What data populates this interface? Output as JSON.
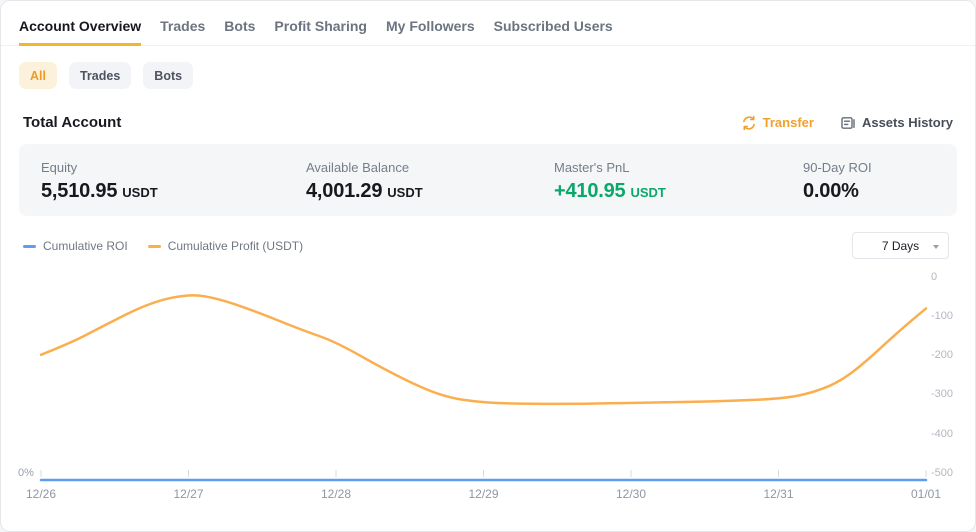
{
  "tabs": {
    "items": [
      {
        "label": "Account Overview",
        "active": true
      },
      {
        "label": "Trades",
        "active": false
      },
      {
        "label": "Bots",
        "active": false
      },
      {
        "label": "Profit Sharing",
        "active": false
      },
      {
        "label": "My Followers",
        "active": false
      },
      {
        "label": "Subscribed Users",
        "active": false
      }
    ]
  },
  "filters": {
    "items": [
      {
        "label": "All",
        "active": true
      },
      {
        "label": "Trades",
        "active": false
      },
      {
        "label": "Bots",
        "active": false
      }
    ]
  },
  "account_section": {
    "title": "Total Account",
    "transfer_label": "Transfer",
    "assets_history_label": "Assets History"
  },
  "stats": {
    "items": [
      {
        "label": "Equity",
        "value": "5,510.95",
        "unit": "USDT",
        "emphasis": "default"
      },
      {
        "label": "Available Balance",
        "value": "4,001.29",
        "unit": "USDT",
        "emphasis": "default"
      },
      {
        "label": "Master's PnL",
        "value": "+410.95",
        "unit": "USDT",
        "emphasis": "positive"
      },
      {
        "label": "90-Day ROI",
        "value": "0.00%",
        "unit": "",
        "emphasis": "default"
      }
    ]
  },
  "chart_header": {
    "legend": [
      {
        "label": "Cumulative ROI",
        "color": "#5f9df2"
      },
      {
        "label": "Cumulative Profit (USDT)",
        "color": "#fbae4e"
      }
    ],
    "range_selector": {
      "value": "7 Days"
    }
  },
  "colors": {
    "accent_orange": "#f0a12c",
    "tab_underline": "#f5b52b",
    "positive_green": "#0aa869",
    "roi_line": "#5f9df2",
    "profit_line": "#fbae4e",
    "axis_tick": "#d7dbe0"
  },
  "chart_data": {
    "type": "line",
    "x_labels": [
      "12/26",
      "12/27",
      "12/28",
      "12/29",
      "12/30",
      "12/31",
      "01/01"
    ],
    "left_axis": {
      "unit": "%",
      "visible_tick": "0%"
    },
    "right_axis": {
      "ticks": [
        0,
        -100,
        -200,
        -300,
        -400,
        -500
      ],
      "range": [
        0,
        -500
      ]
    },
    "grid": false,
    "legend_position": "top-left",
    "series": [
      {
        "name": "Cumulative ROI",
        "axis": "left",
        "unit": "%",
        "color": "#5f9df2",
        "values": [
          0,
          0,
          0,
          0,
          0,
          0,
          0
        ]
      },
      {
        "name": "Cumulative Profit (USDT)",
        "axis": "right",
        "unit": "USDT",
        "color": "#fbae4e",
        "values": [
          -198,
          -45,
          -165,
          -322,
          -320,
          -310,
          -80
        ],
        "curve_samples": [
          [
            0,
            -198
          ],
          [
            0.2,
            -168
          ],
          [
            0.41,
            -127
          ],
          [
            0.75,
            -63
          ],
          [
            1.02,
            -43
          ],
          [
            1.2,
            -55
          ],
          [
            1.43,
            -84
          ],
          [
            1.77,
            -135
          ],
          [
            2.0,
            -165
          ],
          [
            2.38,
            -246
          ],
          [
            2.72,
            -305
          ],
          [
            3.0,
            -320
          ],
          [
            3.3,
            -323
          ],
          [
            3.7,
            -323
          ],
          [
            4.0,
            -320
          ],
          [
            4.4,
            -318
          ],
          [
            4.7,
            -315
          ],
          [
            5.0,
            -310
          ],
          [
            5.2,
            -298
          ],
          [
            5.4,
            -270
          ],
          [
            5.57,
            -223
          ],
          [
            5.81,
            -140
          ],
          [
            6.0,
            -80
          ]
        ]
      }
    ]
  }
}
